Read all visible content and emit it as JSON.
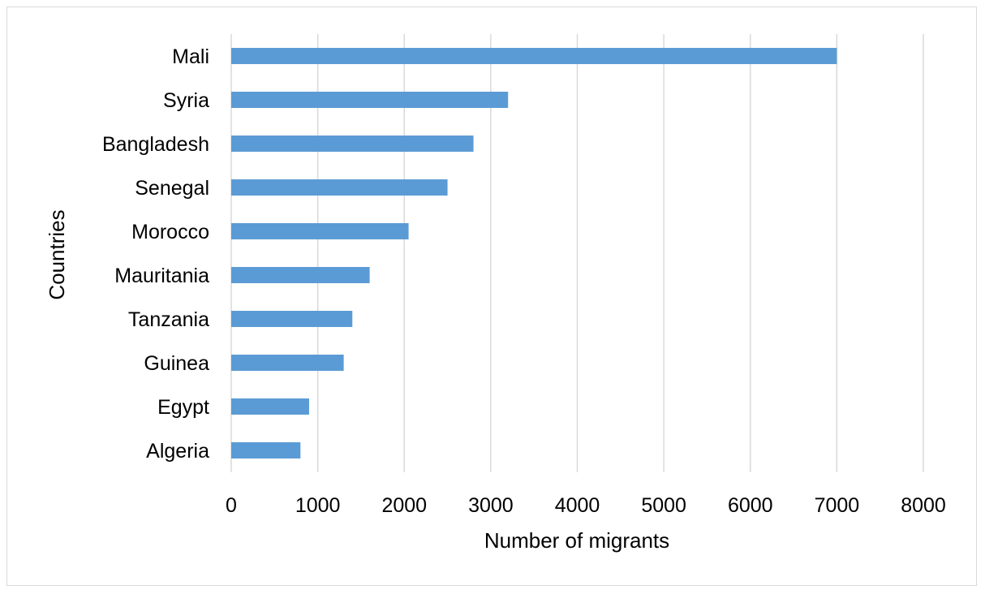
{
  "chart_data": {
    "type": "bar",
    "orientation": "horizontal",
    "title": "",
    "xlabel": "Number of migrants",
    "ylabel": "Countries",
    "xlim": [
      0,
      8000
    ],
    "x_ticks": [
      0,
      1000,
      2000,
      3000,
      4000,
      5000,
      6000,
      7000,
      8000
    ],
    "grid": "vertical",
    "legend": "none",
    "categories": [
      "Mali",
      "Syria",
      "Bangladesh",
      "Senegal",
      "Morocco",
      "Mauritania",
      "Tanzania",
      "Guinea",
      "Egypt",
      "Algeria"
    ],
    "values": [
      7000,
      3200,
      2800,
      2500,
      2050,
      1600,
      1400,
      1300,
      900,
      800
    ],
    "bar_color": "#5b9bd5",
    "grid_color": "#d9d9d9"
  }
}
